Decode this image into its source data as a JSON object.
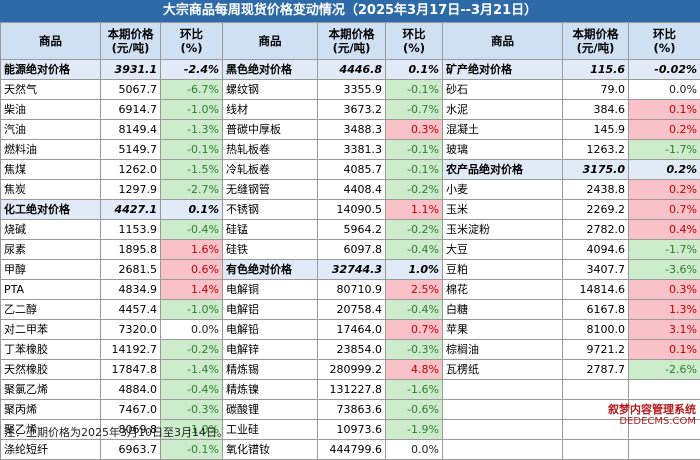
{
  "title": "大宗商品每周现货价格变动情况（2025年3月17日--3月21日）",
  "headers": {
    "commodity": "商品",
    "price": "本期价格\n(元/吨)",
    "change": "环比\n(%)"
  },
  "groups": [
    {
      "rows": [
        {
          "name": "能源绝对价格",
          "price": "3931.1",
          "chg": "-2.4%",
          "dir": "down",
          "abs": true
        },
        {
          "name": "天然气",
          "price": "5067.7",
          "chg": "-6.7%",
          "dir": "down"
        },
        {
          "name": "柴油",
          "price": "6914.7",
          "chg": "-1.0%",
          "dir": "down"
        },
        {
          "name": "汽油",
          "price": "8149.4",
          "chg": "-1.3%",
          "dir": "down"
        },
        {
          "name": "燃料油",
          "price": "5149.7",
          "chg": "-0.1%",
          "dir": "down"
        },
        {
          "name": "焦煤",
          "price": "1262.0",
          "chg": "-1.5%",
          "dir": "down"
        },
        {
          "name": "焦炭",
          "price": "1297.9",
          "chg": "-2.7%",
          "dir": "down"
        },
        {
          "name": "化工绝对价格",
          "price": "4427.1",
          "chg": "0.1%",
          "dir": "up",
          "abs": true
        },
        {
          "name": "烧碱",
          "price": "1153.9",
          "chg": "-0.4%",
          "dir": "down"
        },
        {
          "name": "尿素",
          "price": "1895.8",
          "chg": "1.6%",
          "dir": "up"
        },
        {
          "name": "甲醇",
          "price": "2681.5",
          "chg": "0.6%",
          "dir": "up"
        },
        {
          "name": "PTA",
          "price": "4834.9",
          "chg": "1.4%",
          "dir": "up"
        },
        {
          "name": "乙二醇",
          "price": "4457.4",
          "chg": "-1.0%",
          "dir": "down"
        },
        {
          "name": "对二甲苯",
          "price": "7320.0",
          "chg": "0.0%",
          "dir": "zero"
        },
        {
          "name": "丁苯橡胶",
          "price": "14192.7",
          "chg": "-0.2%",
          "dir": "down"
        },
        {
          "name": "天然橡胶",
          "price": "17847.8",
          "chg": "-1.4%",
          "dir": "down"
        },
        {
          "name": "聚氯乙烯",
          "price": "4884.0",
          "chg": "-0.4%",
          "dir": "down"
        },
        {
          "name": "聚丙烯",
          "price": "7467.0",
          "chg": "-0.3%",
          "dir": "down"
        },
        {
          "name": "聚乙烯",
          "price": "8069.8",
          "chg": "-1.0%",
          "dir": "down"
        },
        {
          "name": "涤纶短纤",
          "price": "6963.7",
          "chg": "-0.1%",
          "dir": "down"
        }
      ]
    },
    {
      "rows": [
        {
          "name": "黑色绝对价格",
          "price": "4446.8",
          "chg": "0.1%",
          "dir": "up",
          "abs": true
        },
        {
          "name": "螺纹钢",
          "price": "3355.9",
          "chg": "-0.1%",
          "dir": "down"
        },
        {
          "name": "线材",
          "price": "3673.2",
          "chg": "-0.7%",
          "dir": "down"
        },
        {
          "name": "普碳中厚板",
          "price": "3488.3",
          "chg": "0.3%",
          "dir": "up"
        },
        {
          "name": "热轧板卷",
          "price": "3381.3",
          "chg": "-0.1%",
          "dir": "down"
        },
        {
          "name": "冷轧板卷",
          "price": "4085.7",
          "chg": "-0.1%",
          "dir": "down"
        },
        {
          "name": "无缝钢管",
          "price": "4408.4",
          "chg": "-0.2%",
          "dir": "down"
        },
        {
          "name": "不锈钢",
          "price": "14090.5",
          "chg": "1.1%",
          "dir": "up"
        },
        {
          "name": "硅锰",
          "price": "5964.2",
          "chg": "-0.2%",
          "dir": "down"
        },
        {
          "name": "硅铁",
          "price": "6097.8",
          "chg": "-0.4%",
          "dir": "down"
        },
        {
          "name": "有色绝对价格",
          "price": "32744.3",
          "chg": "1.0%",
          "dir": "up",
          "abs": true
        },
        {
          "name": "电解铜",
          "price": "80710.9",
          "chg": "2.5%",
          "dir": "up"
        },
        {
          "name": "电解铝",
          "price": "20758.4",
          "chg": "-0.4%",
          "dir": "down"
        },
        {
          "name": "电解铅",
          "price": "17464.0",
          "chg": "0.7%",
          "dir": "up"
        },
        {
          "name": "电解锌",
          "price": "23854.0",
          "chg": "-0.3%",
          "dir": "down"
        },
        {
          "name": "精炼锡",
          "price": "280999.2",
          "chg": "4.8%",
          "dir": "up"
        },
        {
          "name": "精炼镍",
          "price": "131227.8",
          "chg": "-1.6%",
          "dir": "down"
        },
        {
          "name": "碳酸锂",
          "price": "73863.6",
          "chg": "-0.6%",
          "dir": "down"
        },
        {
          "name": "工业硅",
          "price": "10973.6",
          "chg": "-1.9%",
          "dir": "down"
        },
        {
          "name": "氧化镨钕",
          "price": "444799.6",
          "chg": "0.0%",
          "dir": "zero"
        }
      ]
    },
    {
      "rows": [
        {
          "name": "矿产绝对价格",
          "price": "115.6",
          "chg": "-0.02%",
          "dir": "down",
          "abs": true
        },
        {
          "name": "砂石",
          "price": "79.0",
          "chg": "0.0%",
          "dir": "zero"
        },
        {
          "name": "水泥",
          "price": "384.6",
          "chg": "0.1%",
          "dir": "up"
        },
        {
          "name": "混凝土",
          "price": "145.9",
          "chg": "0.2%",
          "dir": "up"
        },
        {
          "name": "玻璃",
          "price": "1263.2",
          "chg": "-1.7%",
          "dir": "down"
        },
        {
          "name": "农产品绝对价格",
          "price": "3175.0",
          "chg": "0.2%",
          "dir": "up",
          "abs": true
        },
        {
          "name": "小麦",
          "price": "2438.8",
          "chg": "0.2%",
          "dir": "up"
        },
        {
          "name": "玉米",
          "price": "2269.2",
          "chg": "0.7%",
          "dir": "up"
        },
        {
          "name": "玉米淀粉",
          "price": "2782.0",
          "chg": "0.4%",
          "dir": "up"
        },
        {
          "name": "大豆",
          "price": "4094.6",
          "chg": "-1.7%",
          "dir": "down"
        },
        {
          "name": "豆粕",
          "price": "3407.7",
          "chg": "-3.6%",
          "dir": "down"
        },
        {
          "name": "棉花",
          "price": "14814.6",
          "chg": "0.3%",
          "dir": "up"
        },
        {
          "name": "白糖",
          "price": "6167.8",
          "chg": "1.3%",
          "dir": "up"
        },
        {
          "name": "苹果",
          "price": "8100.0",
          "chg": "3.1%",
          "dir": "up"
        },
        {
          "name": "棕榈油",
          "price": "9721.2",
          "chg": "0.1%",
          "dir": "up"
        },
        {
          "name": "瓦楞纸",
          "price": "2787.7",
          "chg": "-2.6%",
          "dir": "down"
        },
        {
          "name": "",
          "price": "",
          "chg": "",
          "dir": "empty"
        },
        {
          "name": "",
          "price": "",
          "chg": "",
          "dir": "empty"
        },
        {
          "name": "",
          "price": "",
          "chg": "",
          "dir": "empty"
        },
        {
          "name": "",
          "price": "",
          "chg": "",
          "dir": "empty"
        }
      ]
    }
  ],
  "note": "注：上期价格为2025年3月10日至3月14日。",
  "watermark": {
    "line1": "叙梦内容管理系统",
    "line2": "DEDECMS.COM"
  },
  "colors": {
    "header_bg": "#2f6aa8",
    "up_bg": "#f9c2c8",
    "up_fg": "#c00000",
    "down_bg": "#cdeccb",
    "down_fg": "#2e7d32"
  }
}
